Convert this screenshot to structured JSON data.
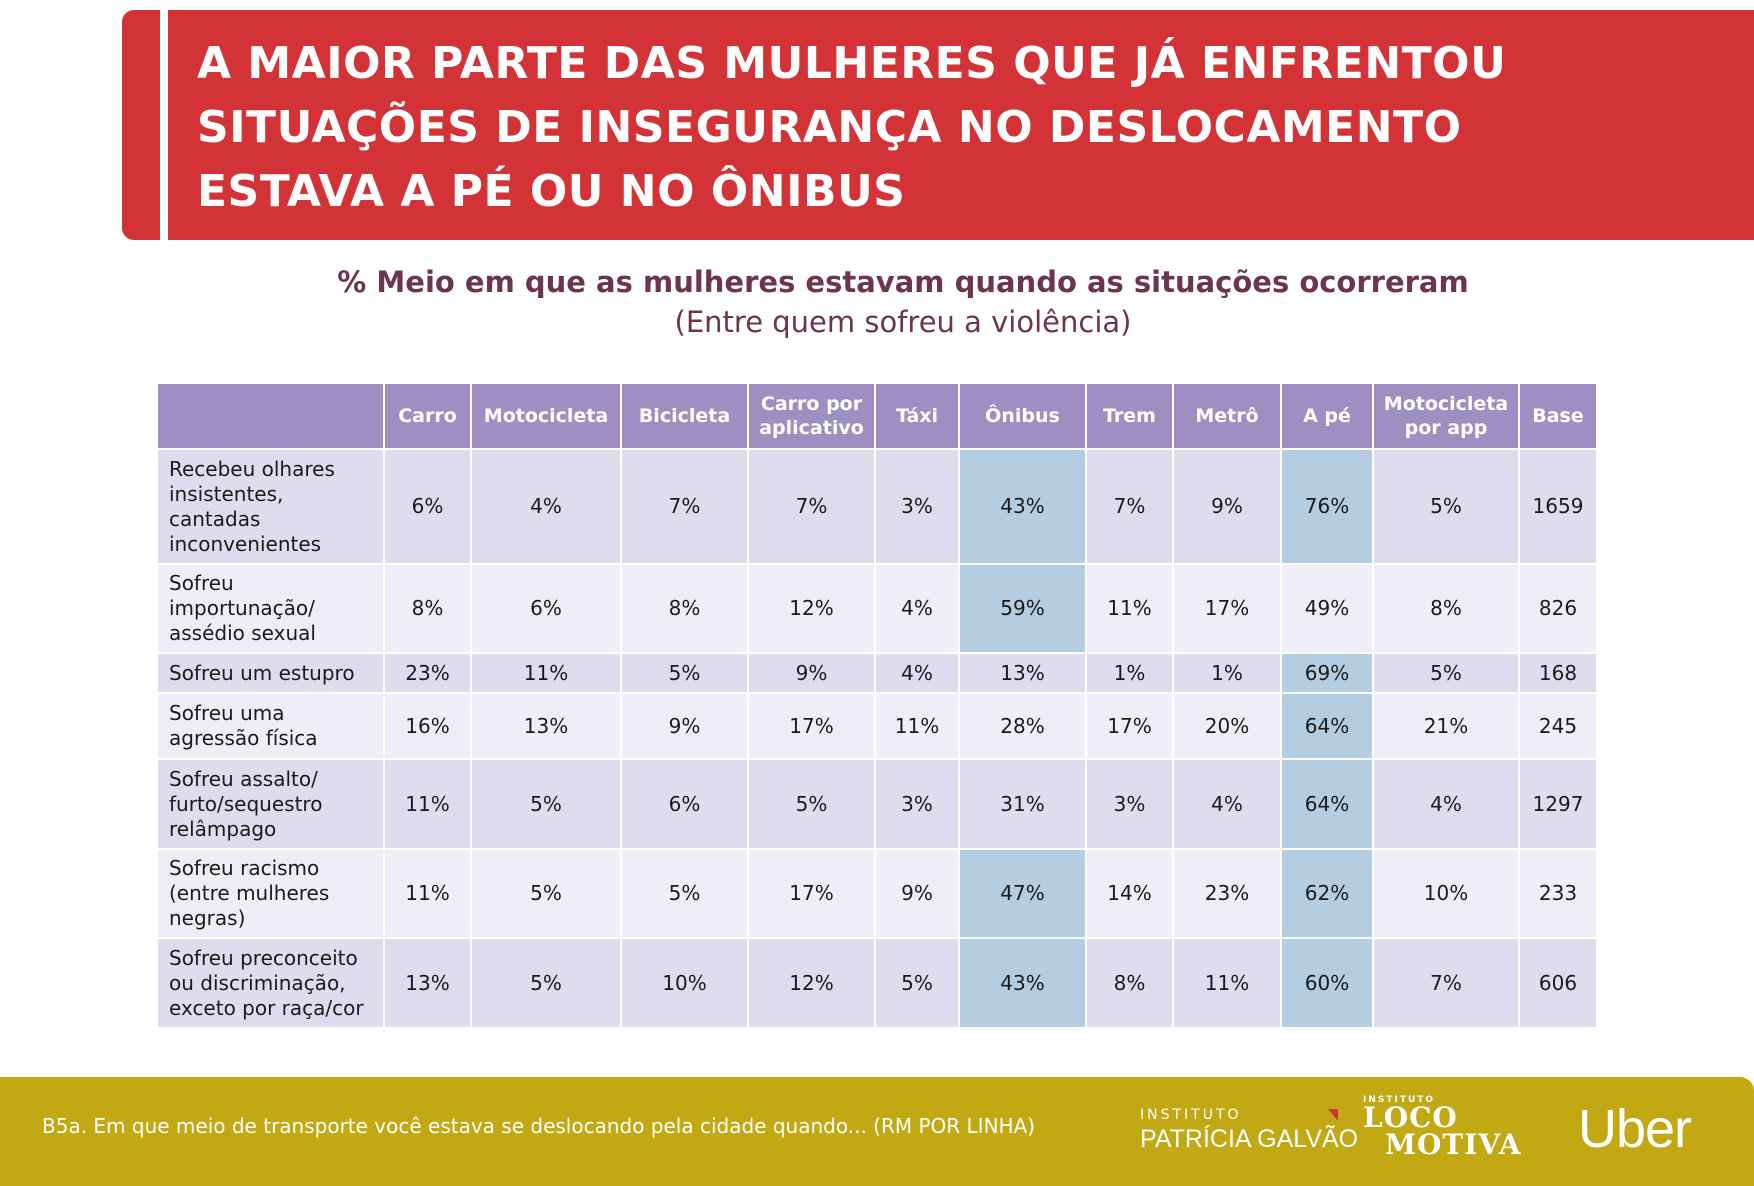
{
  "header": {
    "title_lines": [
      "A MAIOR PARTE DAS MULHERES QUE JÁ ENFRENTOU",
      "SITUAÇÕES DE INSEGURANÇA NO DESLOCAMENTO",
      "ESTAVA A PÉ OU NO ÔNIBUS"
    ]
  },
  "subtitle": {
    "main": "% Meio em que as mulheres estavam quando as situações ocorreram",
    "sub": "(Entre quem sofreu a violência)"
  },
  "colors": {
    "banner_red": "#d33236",
    "header_purple": "#9c90c2",
    "row_odd": "#e0dced",
    "row_even": "#efeef6",
    "highlight_blue": "#b5cde1",
    "footer_gold": "#c2a813",
    "subtitle_color": "#6b3550"
  },
  "chart_data": {
    "type": "table",
    "title": "% Meio em que as mulheres estavam quando as situações ocorreram",
    "subtitle": "(Entre quem sofreu a violência)",
    "columns": [
      "",
      "Carro",
      "Motocicleta",
      "Bicicleta",
      "Carro por aplicativo",
      "Táxi",
      "Ônibus",
      "Trem",
      "Metrô",
      "A pé",
      "Motocicleta por app",
      "Base"
    ],
    "column_lines": [
      [
        ""
      ],
      [
        "Carro"
      ],
      [
        "Motocicleta"
      ],
      [
        "Bicicleta"
      ],
      [
        "Carro por",
        "aplicativo"
      ],
      [
        "Táxi"
      ],
      [
        "Ônibus"
      ],
      [
        "Trem"
      ],
      [
        "Metrô"
      ],
      [
        "A pé"
      ],
      [
        "Motocicleta",
        "por app"
      ],
      [
        "Base"
      ]
    ],
    "rows": [
      {
        "label_lines": [
          "Recebeu olhares",
          "insistentes,",
          "cantadas",
          "inconvenientes"
        ],
        "label": "Recebeu olhares insistentes, cantadas inconvenientes",
        "values": [
          "6%",
          "4%",
          "7%",
          "7%",
          "3%",
          "43%",
          "7%",
          "9%",
          "76%",
          "5%",
          "1659"
        ],
        "highlighted": [
          "Ônibus",
          "A pé"
        ]
      },
      {
        "label_lines": [
          "Sofreu",
          "importunação/",
          "assédio sexual"
        ],
        "label": "Sofreu importunação/assédio sexual",
        "values": [
          "8%",
          "6%",
          "8%",
          "12%",
          "4%",
          "59%",
          "11%",
          "17%",
          "49%",
          "8%",
          "826"
        ],
        "highlighted": [
          "Ônibus"
        ]
      },
      {
        "label_lines": [
          "Sofreu um estupro"
        ],
        "label": "Sofreu um estupro",
        "values": [
          "23%",
          "11%",
          "5%",
          "9%",
          "4%",
          "13%",
          "1%",
          "1%",
          "69%",
          "5%",
          "168"
        ],
        "highlighted": [
          "A pé"
        ]
      },
      {
        "label_lines": [
          "Sofreu uma",
          "agressão física"
        ],
        "label": "Sofreu uma agressão física",
        "values": [
          "16%",
          "13%",
          "9%",
          "17%",
          "11%",
          "28%",
          "17%",
          "20%",
          "64%",
          "21%",
          "245"
        ],
        "highlighted": [
          "A pé"
        ]
      },
      {
        "label_lines": [
          "Sofreu assalto/",
          "furto/sequestro",
          "relâmpago"
        ],
        "label": "Sofreu assalto/furto/sequestro relâmpago",
        "values": [
          "11%",
          "5%",
          "6%",
          "5%",
          "3%",
          "31%",
          "3%",
          "4%",
          "64%",
          "4%",
          "1297"
        ],
        "highlighted": [
          "A pé"
        ]
      },
      {
        "label_lines": [
          "Sofreu racismo",
          "(entre mulheres",
          "negras)"
        ],
        "label": "Sofreu racismo (entre mulheres negras)",
        "values": [
          "11%",
          "5%",
          "5%",
          "17%",
          "9%",
          "47%",
          "14%",
          "23%",
          "62%",
          "10%",
          "233"
        ],
        "highlighted": [
          "Ônibus",
          "A pé"
        ]
      },
      {
        "label_lines": [
          "Sofreu preconceito",
          "ou discriminação,",
          "exceto por raça/cor"
        ],
        "label": "Sofreu preconceito ou discriminação, exceto por raça/cor",
        "values": [
          "13%",
          "5%",
          "10%",
          "12%",
          "5%",
          "43%",
          "8%",
          "11%",
          "60%",
          "7%",
          "606"
        ],
        "highlighted": [
          "Ônibus",
          "A pé"
        ]
      }
    ]
  },
  "footer": {
    "note": "B5a. Em que meio de transporte você estava se deslocando pela cidade quando... (RM POR LINHA)",
    "logos": {
      "patricia_galvao": {
        "small": "INSTITUTO",
        "big": "PATRÍCIA GALVÃO"
      },
      "locomotiva": {
        "small": "INSTITUTO",
        "line1": "LOCO",
        "line2": "MOTIVA"
      },
      "uber": "Uber"
    }
  }
}
